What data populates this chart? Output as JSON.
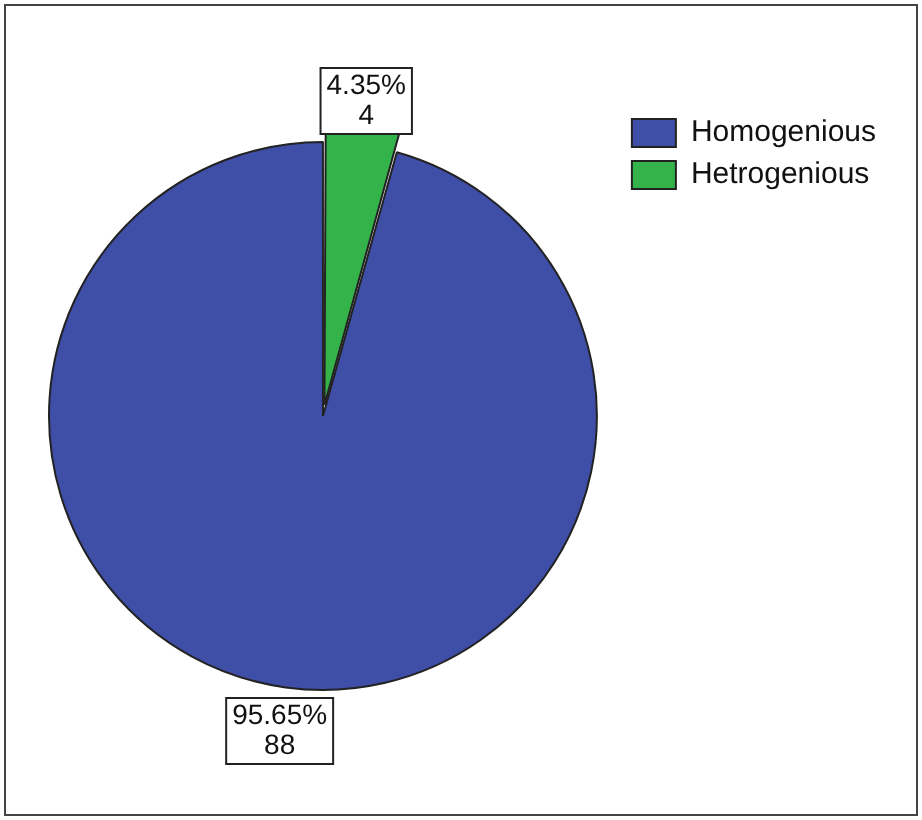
{
  "chart_data": {
    "type": "pie",
    "categories": [
      "Homogenious",
      "Hetrogenious"
    ],
    "values": [
      88,
      4
    ],
    "colors": [
      "#3f4fa8",
      "#33b34a"
    ],
    "value_labels": [
      "95.65%\n88",
      "4.35%\n4"
    ],
    "legend": "top right"
  }
}
